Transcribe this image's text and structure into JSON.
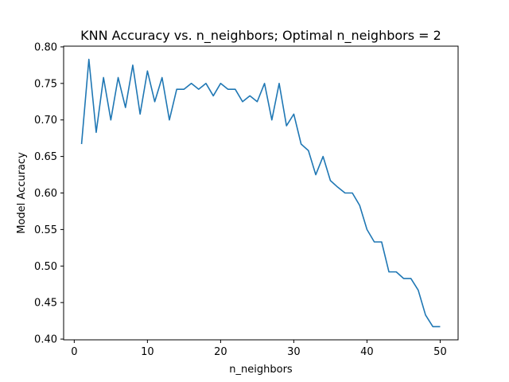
{
  "chart_data": {
    "type": "line",
    "title": "KNN Accuracy vs. n_neighbors; Optimal n_neighbors = 2",
    "xlabel": "n_neighbors",
    "ylabel": "Model Accuracy",
    "xlim": [
      -1.45,
      52.45
    ],
    "ylim": [
      0.399,
      0.801
    ],
    "xticks": [
      0,
      10,
      20,
      30,
      40,
      50
    ],
    "yticks": [
      0.4,
      0.45,
      0.5,
      0.55,
      0.6,
      0.65,
      0.7,
      0.75,
      0.8
    ],
    "xtick_labels": [
      "0",
      "10",
      "20",
      "30",
      "40",
      "50"
    ],
    "ytick_labels": [
      "0.40",
      "0.45",
      "0.50",
      "0.55",
      "0.60",
      "0.65",
      "0.70",
      "0.75",
      "0.80"
    ],
    "grid": false,
    "line_color": "#1f77b4",
    "series": [
      {
        "x": [
          1,
          2,
          3,
          4,
          5,
          6,
          7,
          8,
          9,
          10,
          11,
          12,
          13,
          14,
          15,
          16,
          17,
          18,
          19,
          20,
          21,
          22,
          23,
          24,
          25,
          26,
          27,
          28,
          29,
          30,
          31,
          32,
          33,
          34,
          35,
          36,
          37,
          38,
          39,
          40,
          41,
          42,
          43,
          44,
          45,
          46,
          47,
          48,
          49,
          50
        ],
        "values": [
          0.667,
          0.783,
          0.683,
          0.758,
          0.7,
          0.758,
          0.717,
          0.775,
          0.708,
          0.767,
          0.725,
          0.758,
          0.7,
          0.742,
          0.742,
          0.75,
          0.742,
          0.75,
          0.733,
          0.75,
          0.742,
          0.742,
          0.725,
          0.733,
          0.725,
          0.75,
          0.7,
          0.75,
          0.692,
          0.708,
          0.667,
          0.658,
          0.625,
          0.65,
          0.617,
          0.608,
          0.6,
          0.6,
          0.583,
          0.55,
          0.533,
          0.533,
          0.492,
          0.492,
          0.483,
          0.483,
          0.467,
          0.433,
          0.417,
          0.417
        ]
      }
    ]
  }
}
